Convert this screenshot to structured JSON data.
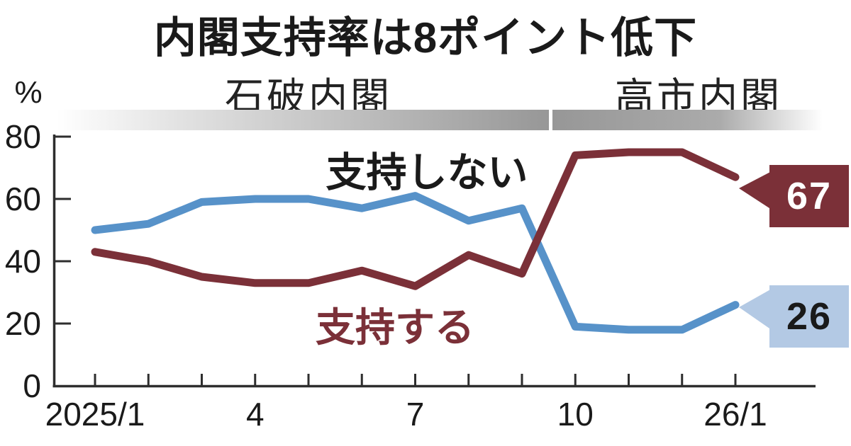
{
  "title": "内閣支持率は8ポイント低下",
  "unit_label": "%",
  "eras": [
    {
      "label": "石破内閣"
    },
    {
      "label": "高市内閣"
    }
  ],
  "series_labels": {
    "disapprove": "支持しない",
    "approve": "支持する"
  },
  "callouts": {
    "approve": "67",
    "disapprove": "26"
  },
  "colors": {
    "disapprove_line": "#5792c9",
    "approve_line": "#7b3038",
    "approve_callout_bg": "#7b3038",
    "approve_callout_text": "#ffffff",
    "disapprove_callout_bg": "#b3c9e4",
    "disapprove_callout_text": "#1a1a1a",
    "axis": "#2e2e2e",
    "era_bar_gray": "#979797",
    "title_text": "#1a1a1a"
  },
  "chart_data": {
    "type": "line",
    "title": "内閣支持率は8ポイント低下",
    "ylabel": "%",
    "ylim": [
      0,
      80
    ],
    "yticks": [
      0,
      20,
      40,
      60,
      80
    ],
    "grid": false,
    "x_months": [
      "2025/1",
      "2025/2",
      "2025/3",
      "2025/4",
      "2025/5",
      "2025/6",
      "2025/7",
      "2025/8",
      "2025/9",
      "2025/10",
      "2025/11",
      "2025/12",
      "2026/1"
    ],
    "x_tick_labels": [
      {
        "month_index": 0,
        "text": "2025/1"
      },
      {
        "month_index": 3,
        "text": "4"
      },
      {
        "month_index": 6,
        "text": "7"
      },
      {
        "month_index": 9,
        "text": "10"
      },
      {
        "month_index": 12,
        "text": "26/1"
      }
    ],
    "series": [
      {
        "name": "支持しない",
        "color": "#5792c9",
        "values": [
          50,
          52,
          59,
          60,
          60,
          57,
          61,
          53,
          57,
          19,
          18,
          18,
          26
        ]
      },
      {
        "name": "支持する",
        "color": "#7b3038",
        "values": [
          43,
          40,
          35,
          33,
          33,
          37,
          32,
          42,
          36,
          74,
          75,
          75,
          67
        ]
      }
    ],
    "annotations": {
      "era_split_between_months": [
        "2025/9",
        "2025/10"
      ],
      "end_labels": {
        "支持する": 67,
        "支持しない": 26
      }
    },
    "legend_position": "inline-labels"
  }
}
